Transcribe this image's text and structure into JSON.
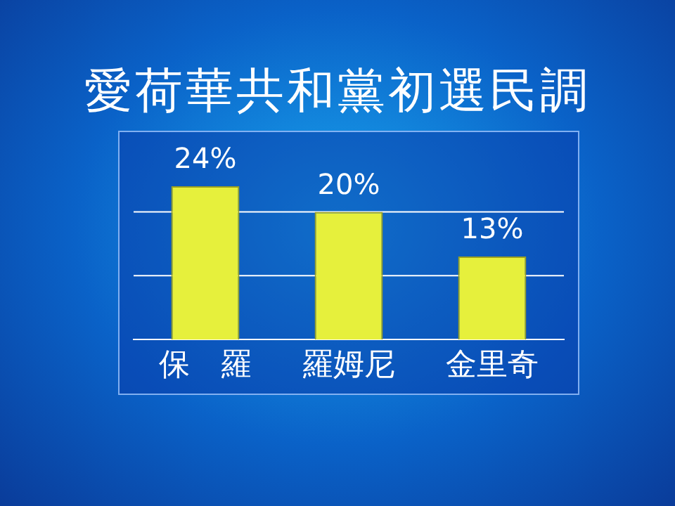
{
  "chart_data": {
    "type": "bar",
    "title": "愛荷華共和黨初選民調",
    "categories": [
      "保　羅",
      "羅姆尼",
      "金里奇"
    ],
    "values": [
      24,
      20,
      13
    ],
    "value_labels": [
      "24%",
      "20%",
      "13%"
    ],
    "color": "#e6f03c",
    "ref_lines": [
      {
        "axis": "y",
        "value": 10,
        "color": "#ffffff"
      },
      {
        "axis": "y",
        "value": 20,
        "color": "#ffffff"
      }
    ],
    "tick_labels": "x"
  }
}
